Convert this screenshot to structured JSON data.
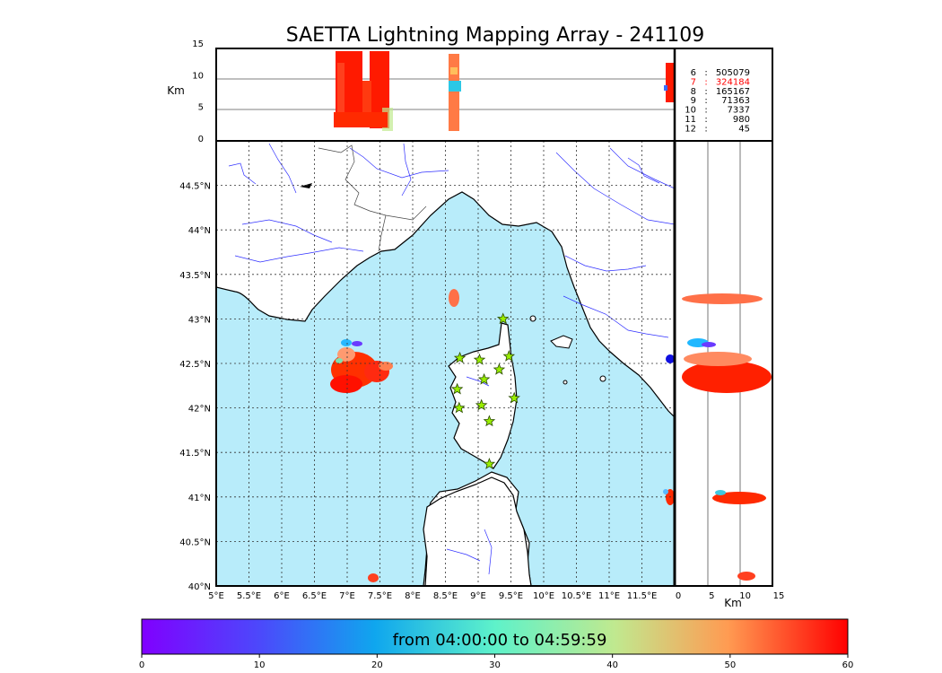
{
  "chart_data": {
    "type": "scatter",
    "title": "SAETTA Lightning Mapping Array - 241109",
    "map": {
      "xlim": [
        5,
        12
      ],
      "ylim": [
        40,
        45
      ],
      "x_ticks": [
        "5°E",
        "5.5°E",
        "6°E",
        "6.5°E",
        "7°E",
        "7.5°E",
        "8°E",
        "8.5°E",
        "9°E",
        "9.5°E",
        "10°E",
        "10.5°E",
        "11°E",
        "11.5°E"
      ],
      "y_ticks": [
        "40°N",
        "40.5°N",
        "41°N",
        "41.5°N",
        "42°N",
        "42.5°N",
        "43°N",
        "43.5°N",
        "44°N",
        "44.5°N"
      ],
      "sea_color": "#b8ecfa",
      "station_color": "#99ee00"
    },
    "altitude_panel": {
      "ylabel": "Km",
      "ylim": [
        0,
        15
      ],
      "y_ticks": [
        "0",
        "5",
        "10",
        "15"
      ]
    },
    "side_panel": {
      "xlabel": "Km",
      "xlim": [
        0,
        15
      ],
      "x_ticks": [
        "0",
        "5",
        "10",
        "15"
      ]
    },
    "station_counts": [
      {
        "stations": "6",
        "count": "505079",
        "color": "#000000"
      },
      {
        "stations": "7",
        "count": "324184",
        "color": "#ff0000"
      },
      {
        "stations": "8",
        "count": "165167",
        "color": "#000000"
      },
      {
        "stations": "9",
        "count": "71363",
        "color": "#000000"
      },
      {
        "stations": "10",
        "count": "7337",
        "color": "#000000"
      },
      {
        "stations": "11",
        "count": "980",
        "color": "#000000"
      },
      {
        "stations": "12",
        "count": "45",
        "color": "#000000"
      }
    ],
    "colorbar": {
      "label": "from 04:00:00 to 04:59:59",
      "range": [
        0,
        60
      ],
      "ticks": [
        "0",
        "10",
        "20",
        "30",
        "40",
        "50",
        "60"
      ],
      "colormap": "rainbow"
    },
    "stations": [
      {
        "lon": 9.38,
        "lat": 43.0
      },
      {
        "lon": 8.72,
        "lat": 42.56
      },
      {
        "lon": 9.02,
        "lat": 42.54
      },
      {
        "lon": 9.47,
        "lat": 42.58
      },
      {
        "lon": 9.32,
        "lat": 42.43
      },
      {
        "lon": 9.09,
        "lat": 42.32
      },
      {
        "lon": 8.68,
        "lat": 42.21
      },
      {
        "lon": 9.55,
        "lat": 42.11
      },
      {
        "lon": 8.71,
        "lat": 42.0
      },
      {
        "lon": 9.05,
        "lat": 42.03
      },
      {
        "lon": 9.17,
        "lat": 41.85
      },
      {
        "lon": 9.17,
        "lat": 41.37
      }
    ],
    "storm_clusters": [
      {
        "lon": 7.0,
        "lat": 42.33,
        "alt": 7,
        "time": 58
      },
      {
        "lon": 7.3,
        "lat": 42.55,
        "alt": 7,
        "time": 55
      },
      {
        "lon": 7.55,
        "lat": 42.42,
        "alt": 7,
        "time": 57
      },
      {
        "lon": 7.05,
        "lat": 42.75,
        "alt": 6,
        "time": 20
      },
      {
        "lon": 8.65,
        "lat": 43.28,
        "alt": 7,
        "time": 48
      },
      {
        "lon": 11.97,
        "lat": 41.0,
        "alt": 8,
        "time": 58
      },
      {
        "lon": 7.42,
        "lat": 40.07,
        "alt": 9,
        "time": 58
      }
    ]
  }
}
